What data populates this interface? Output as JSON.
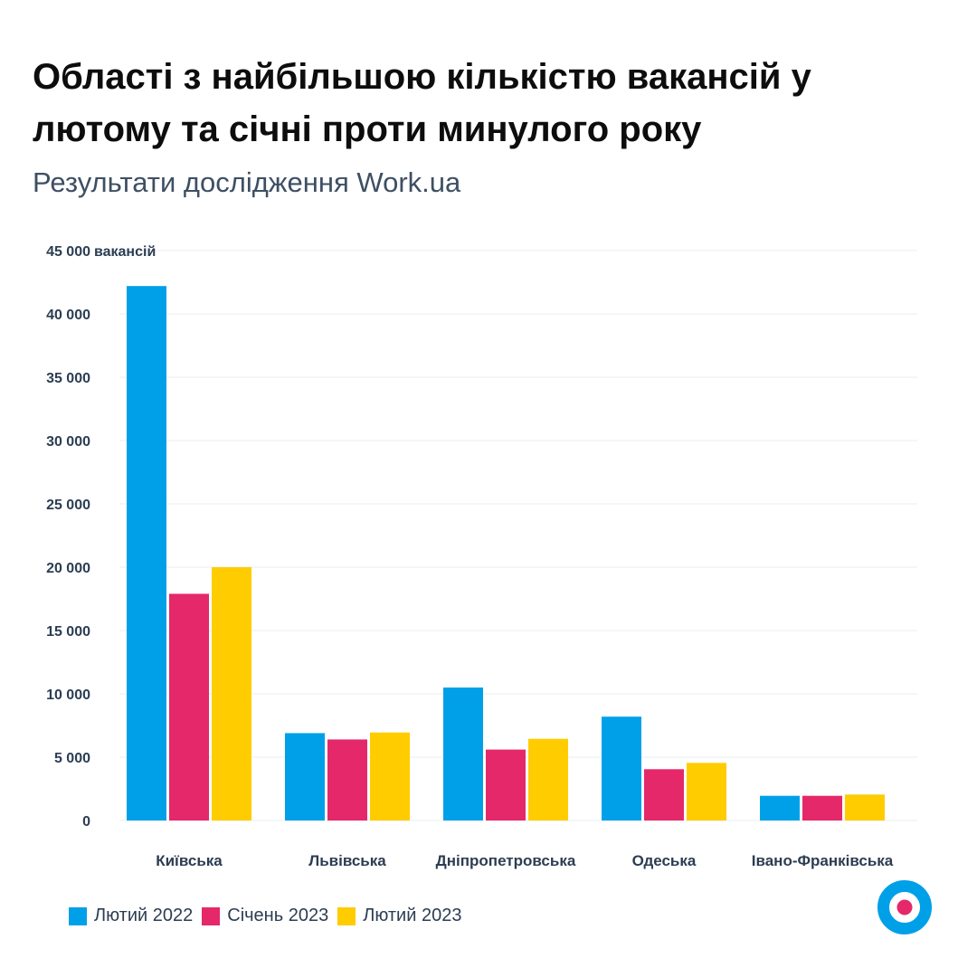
{
  "header": {
    "title": "Області з найбільшою кількістю вакансій у лютому та січні проти минулого року",
    "subtitle": "Результати дослідження Work.ua"
  },
  "chart_data": {
    "type": "bar",
    "categories": [
      "Київська",
      "Львівська",
      "Дніпропетровська",
      "Одеська",
      "Івано-Франківська"
    ],
    "series": [
      {
        "name": "Лютий 2022",
        "color": "#00a0e9",
        "values": [
          42200,
          6900,
          10500,
          8200,
          1950
        ]
      },
      {
        "name": "Січень 2023",
        "color": "#e5286a",
        "values": [
          17900,
          6400,
          5600,
          4050,
          1950
        ]
      },
      {
        "name": "Лютий 2023",
        "color": "#ffcc00",
        "values": [
          20000,
          6950,
          6450,
          4550,
          2050
        ]
      }
    ],
    "y_ticks": [
      "0",
      "5 000",
      "10 000",
      "15 000",
      "20 000",
      "25 000",
      "30 000",
      "35 000",
      "40 000",
      "45 000"
    ],
    "y_unit_label": "вакансій",
    "ylim": [
      0,
      45000
    ],
    "grid": true,
    "legend_position": "bottom-left"
  },
  "logo": {
    "name": "work-ua-logo-icon",
    "ring_color": "#00a0e9",
    "dot_color": "#e5286a"
  }
}
